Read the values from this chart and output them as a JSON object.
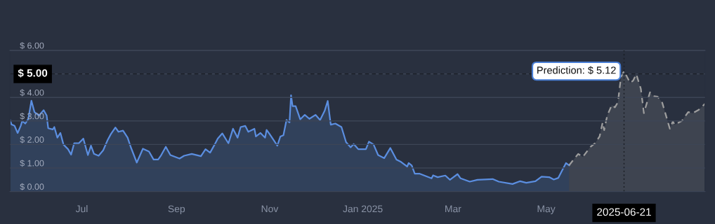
{
  "chart_data": {
    "type": "area",
    "xlim": [
      "2024-05-15",
      "2025-08-13"
    ],
    "xticks": [
      {
        "value": "2024-07-01",
        "label": "Jul"
      },
      {
        "value": "2024-09-01",
        "label": "Sep"
      },
      {
        "value": "2024-11-01",
        "label": "Nov"
      },
      {
        "value": "2025-01-01",
        "label": "Jan 2025"
      },
      {
        "value": "2025-03-01",
        "label": "Mar"
      },
      {
        "value": "2025-05-01",
        "label": "May"
      }
    ],
    "ylim": [
      0,
      6
    ],
    "yticks": [
      {
        "value": 0,
        "label": "$ 0.00"
      },
      {
        "value": 1,
        "label": "$ 1.00"
      },
      {
        "value": 2,
        "label": "$ 2.00"
      },
      {
        "value": 3,
        "label": "$ 3.00"
      },
      {
        "value": 4,
        "label": "$ 4.00"
      },
      {
        "value": 5,
        "label": null
      },
      {
        "value": 6,
        "label": "$ 6.00"
      }
    ],
    "grid": "y",
    "series": [
      {
        "color": "#5b8ee0",
        "line_style": "solid",
        "x": [
          "2024-05-15",
          "2024-05-16",
          "2024-05-18",
          "2024-05-20",
          "2024-05-22",
          "2024-05-23",
          "2024-05-25",
          "2024-05-27",
          "2024-05-29",
          "2024-05-31",
          "2024-06-03",
          "2024-06-06",
          "2024-06-08",
          "2024-06-09",
          "2024-06-12",
          "2024-06-13",
          "2024-06-15",
          "2024-06-17",
          "2024-06-19",
          "2024-06-22",
          "2024-06-24",
          "2024-06-26",
          "2024-06-29",
          "2024-07-02",
          "2024-07-05",
          "2024-07-07",
          "2024-07-09",
          "2024-07-12",
          "2024-07-15",
          "2024-07-18",
          "2024-07-20",
          "2024-07-23",
          "2024-07-25",
          "2024-07-28",
          "2024-07-31",
          "2024-08-02",
          "2024-08-06",
          "2024-08-10",
          "2024-08-14",
          "2024-08-17",
          "2024-08-20",
          "2024-08-22",
          "2024-08-25",
          "2024-08-28",
          "2024-09-03",
          "2024-09-06",
          "2024-09-11",
          "2024-09-17",
          "2024-09-20",
          "2024-09-23",
          "2024-09-26",
          "2024-09-28",
          "2024-10-01",
          "2024-10-05",
          "2024-10-08",
          "2024-10-11",
          "2024-10-13",
          "2024-10-16",
          "2024-10-18",
          "2024-10-22",
          "2024-10-23",
          "2024-10-26",
          "2024-10-29",
          "2024-10-30",
          "2024-11-01",
          "2024-11-04",
          "2024-11-06",
          "2024-11-08",
          "2024-11-10",
          "2024-11-12",
          "2024-11-14",
          "2024-11-15",
          "2024-11-16",
          "2024-11-18",
          "2024-11-21",
          "2024-11-24",
          "2024-11-27",
          "2024-12-01",
          "2024-12-04",
          "2024-12-07",
          "2024-12-09",
          "2024-12-11",
          "2024-12-14",
          "2024-12-18",
          "2024-12-21",
          "2024-12-24",
          "2024-12-26",
          "2024-12-29",
          "2025-01-03",
          "2025-01-05",
          "2025-01-08",
          "2025-01-11",
          "2025-01-15",
          "2025-01-19",
          "2025-01-23",
          "2025-01-26",
          "2025-01-30",
          "2025-01-31",
          "2025-02-02",
          "2025-02-04",
          "2025-02-07",
          "2025-02-15",
          "2025-02-16",
          "2025-02-19",
          "2025-02-24",
          "2025-02-27",
          "2025-03-04",
          "2025-03-06",
          "2025-03-12",
          "2025-03-17",
          "2025-03-27",
          "2025-03-31",
          "2025-04-09",
          "2025-04-14",
          "2025-04-18",
          "2025-04-24",
          "2025-04-28",
          "2025-05-03",
          "2025-05-06",
          "2025-05-09",
          "2025-05-12",
          "2025-05-14",
          "2025-05-16"
        ],
        "values": [
          3.04,
          2.85,
          2.79,
          2.49,
          2.79,
          3.0,
          2.89,
          3.09,
          3.86,
          3.38,
          3.23,
          3.46,
          3.23,
          2.69,
          2.64,
          2.74,
          2.29,
          2.49,
          2.0,
          1.8,
          1.57,
          2.05,
          2.05,
          2.25,
          1.55,
          1.95,
          1.6,
          1.52,
          1.75,
          2.2,
          2.44,
          2.72,
          2.54,
          2.59,
          2.29,
          1.9,
          1.23,
          1.82,
          1.7,
          1.36,
          1.36,
          1.55,
          1.9,
          1.55,
          1.4,
          1.52,
          1.6,
          1.5,
          1.8,
          1.65,
          2.0,
          2.25,
          2.47,
          2.05,
          2.67,
          2.29,
          2.74,
          2.79,
          2.54,
          2.67,
          2.34,
          2.49,
          2.29,
          2.62,
          2.44,
          2.15,
          1.95,
          2.34,
          2.39,
          3.04,
          2.94,
          4.09,
          3.63,
          3.63,
          3.07,
          3.26,
          3.09,
          3.26,
          3.04,
          3.43,
          3.85,
          2.84,
          2.89,
          2.74,
          2.1,
          1.88,
          2.02,
          1.8,
          1.8,
          2.12,
          2.0,
          1.55,
          1.42,
          1.85,
          1.36,
          1.26,
          1.06,
          1.21,
          1.11,
          0.76,
          0.76,
          0.56,
          0.69,
          0.61,
          0.68,
          0.5,
          0.74,
          0.56,
          0.42,
          0.5,
          0.53,
          0.42,
          0.32,
          0.44,
          0.37,
          0.44,
          0.63,
          0.61,
          0.51,
          0.58,
          0.96,
          1.21,
          1.11
        ]
      },
      {
        "color": "#9e9e9e",
        "line_style": "dashed",
        "x": [
          "2025-05-16",
          "2025-05-19",
          "2025-05-22",
          "2025-05-25",
          "2025-05-30",
          "2025-06-02",
          "2025-06-05",
          "2025-06-07",
          "2025-06-08",
          "2025-06-10",
          "2025-06-13",
          "2025-06-15",
          "2025-06-17",
          "2025-06-19",
          "2025-06-21",
          "2025-06-25",
          "2025-06-27",
          "2025-06-29",
          "2025-07-02",
          "2025-07-04",
          "2025-07-06",
          "2025-07-08",
          "2025-07-10",
          "2025-07-13",
          "2025-07-16",
          "2025-07-21",
          "2025-07-23",
          "2025-07-24",
          "2025-07-29",
          "2025-08-02",
          "2025-08-05",
          "2025-08-09",
          "2025-08-13"
        ],
        "values": [
          1.11,
          1.36,
          1.6,
          1.47,
          1.9,
          2.05,
          2.34,
          2.94,
          2.61,
          3.23,
          3.68,
          3.58,
          3.8,
          4.87,
          5.12,
          4.62,
          4.72,
          4.99,
          4.37,
          3.33,
          3.78,
          4.22,
          4.06,
          4.03,
          3.78,
          2.67,
          2.99,
          2.84,
          3.01,
          3.38,
          3.33,
          3.48,
          3.73
        ]
      }
    ],
    "ref_lines": [
      {
        "axis": "y",
        "value": 5,
        "label": "$ 5.00",
        "line_style": "dashed"
      },
      {
        "axis": "x",
        "value": "2025-06-21",
        "label": "2025-06-21",
        "line_style": "dotted"
      }
    ],
    "annotations": [
      {
        "text": "Prediction: $ 5.12",
        "x": "2025-06-21",
        "y": 5.12
      }
    ]
  }
}
